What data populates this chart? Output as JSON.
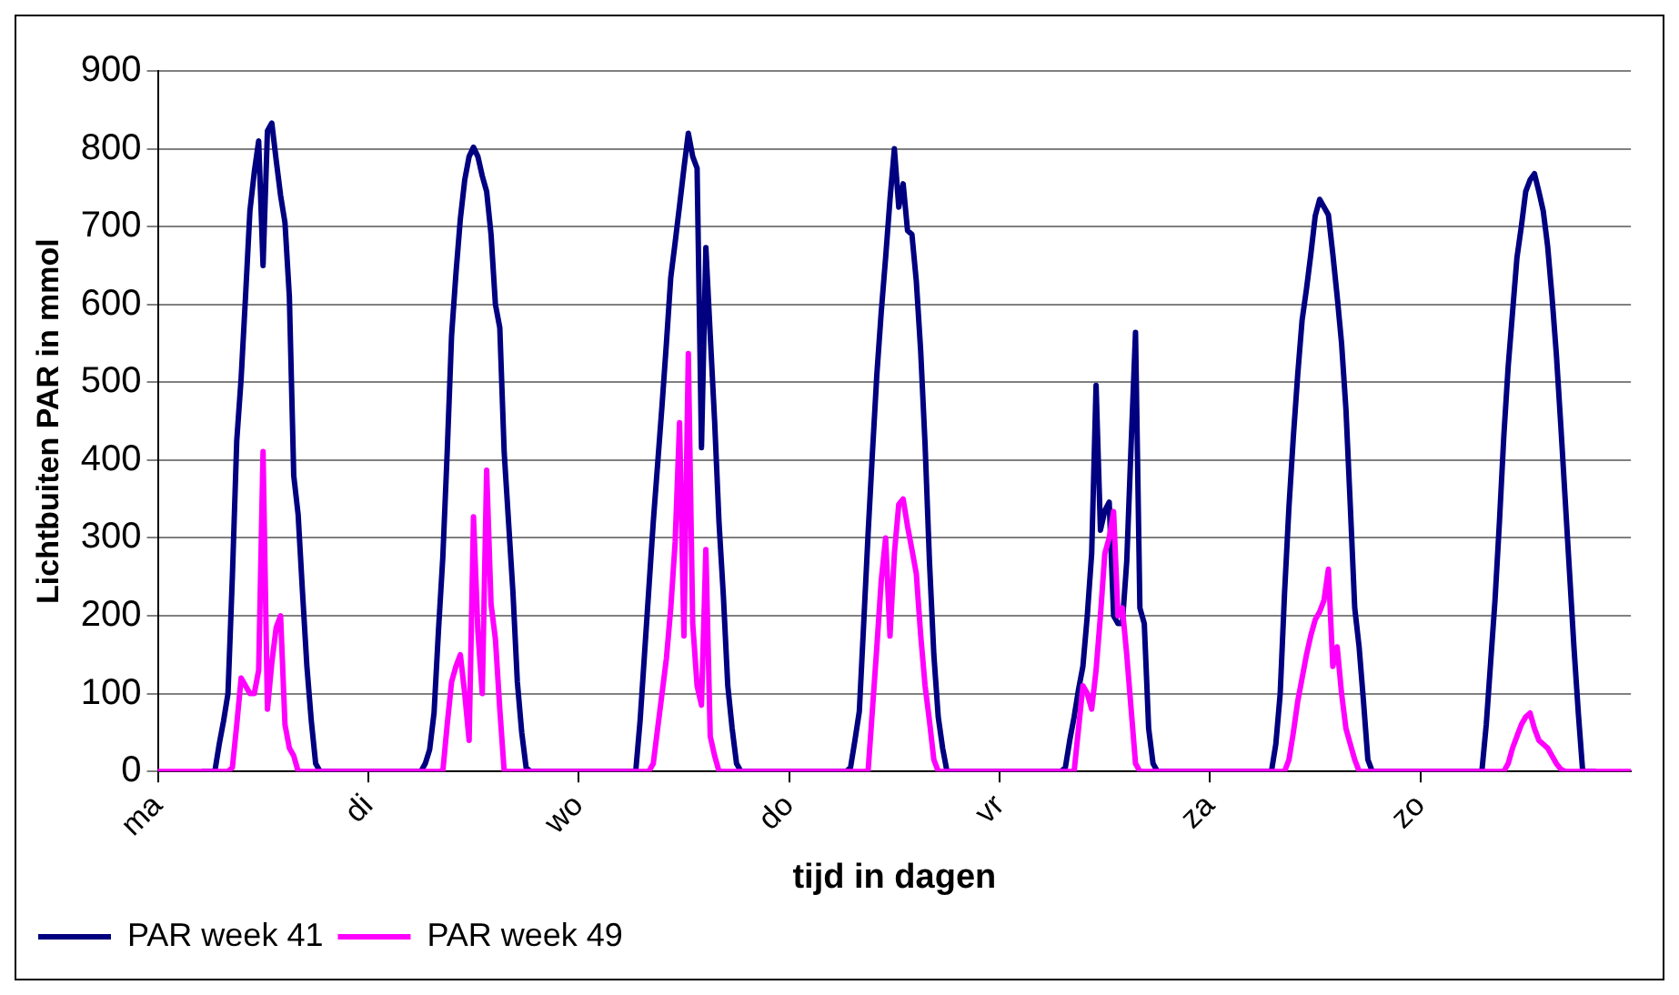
{
  "chart_data": {
    "type": "line",
    "xlabel": "tijd in dagen",
    "ylabel": "Lichtbuiten PAR in mmol",
    "categories": [
      "ma",
      null,
      null,
      null,
      null,
      null,
      null,
      null,
      null,
      null,
      null,
      null,
      null,
      null,
      null,
      null,
      null,
      null,
      null,
      null,
      null,
      null,
      null,
      null,
      null,
      null,
      null,
      null,
      null,
      null,
      null,
      null,
      null,
      null,
      null,
      null,
      null,
      null,
      null,
      null,
      null,
      null,
      null,
      null,
      null,
      null,
      null,
      null,
      "di",
      null,
      null,
      null,
      null,
      null,
      null,
      null,
      null,
      null,
      null,
      null,
      null,
      null,
      null,
      null,
      null,
      null,
      null,
      null,
      null,
      null,
      null,
      null,
      null,
      null,
      null,
      null,
      null,
      null,
      null,
      null,
      null,
      null,
      null,
      null,
      null,
      null,
      null,
      null,
      null,
      null,
      null,
      null,
      null,
      null,
      null,
      null,
      "wo",
      null,
      null,
      null,
      null,
      null,
      null,
      null,
      null,
      null,
      null,
      null,
      null,
      null,
      null,
      null,
      null,
      null,
      null,
      null,
      null,
      null,
      null,
      null,
      null,
      null,
      null,
      null,
      null,
      null,
      null,
      null,
      null,
      null,
      null,
      null,
      null,
      null,
      null,
      null,
      null,
      null,
      null,
      null,
      null,
      null,
      null,
      null,
      "do",
      null,
      null,
      null,
      null,
      null,
      null,
      null,
      null,
      null,
      null,
      null,
      null,
      null,
      null,
      null,
      null,
      null,
      null,
      null,
      null,
      null,
      null,
      null,
      null,
      null,
      null,
      null,
      null,
      null,
      null,
      null,
      null,
      null,
      null,
      null,
      null,
      null,
      null,
      null,
      null,
      null,
      null,
      null,
      null,
      null,
      null,
      null,
      "vr",
      null,
      null,
      null,
      null,
      null,
      null,
      null,
      null,
      null,
      null,
      null,
      null,
      null,
      null,
      null,
      null,
      null,
      null,
      null,
      null,
      null,
      null,
      null,
      null,
      null,
      null,
      null,
      null,
      null,
      null,
      null,
      null,
      null,
      null,
      null,
      null,
      null,
      null,
      null,
      null,
      null,
      null,
      null,
      null,
      null,
      null,
      null,
      "za",
      null,
      null,
      null,
      null,
      null,
      null,
      null,
      null,
      null,
      null,
      null,
      null,
      null,
      null,
      null,
      null,
      null,
      null,
      null,
      null,
      null,
      null,
      null,
      null,
      null,
      null,
      null,
      null,
      null,
      null,
      null,
      null,
      null,
      null,
      null,
      null,
      null,
      null,
      null,
      null,
      null,
      null,
      null,
      null,
      null,
      null,
      null,
      "zo",
      null,
      null,
      null,
      null,
      null,
      null,
      null,
      null,
      null,
      null,
      null,
      null,
      null,
      null,
      null,
      null,
      null,
      null,
      null,
      null,
      null,
      null,
      null,
      null,
      null,
      null,
      null,
      null,
      null,
      null,
      null,
      null,
      null,
      null,
      null,
      null,
      null,
      null,
      null,
      null,
      null,
      null,
      null,
      null,
      null,
      null,
      null,
      null
    ],
    "ylim": [
      0,
      900
    ],
    "yticks": [
      0,
      100,
      200,
      300,
      400,
      500,
      600,
      700,
      800,
      900
    ],
    "grid": "y",
    "legend": "bottom left",
    "series": [
      {
        "name": "PAR week 41",
        "color": "#000080",
        "values": [
          null,
          null,
          null,
          null,
          null,
          null,
          null,
          null,
          null,
          null,
          0,
          0,
          0,
          0,
          35,
          65,
          100,
          250,
          425,
          505,
          610,
          720,
          770,
          810,
          650,
          823,
          833,
          785,
          740,
          705,
          610,
          380,
          330,
          230,
          135,
          65,
          10,
          0,
          0,
          0,
          0,
          0,
          0,
          0,
          0,
          0,
          0,
          0,
          0,
          0,
          0,
          0,
          0,
          0,
          0,
          0,
          0,
          0,
          0,
          0,
          0,
          10,
          28,
          75,
          180,
          275,
          410,
          560,
          640,
          710,
          760,
          790,
          802,
          790,
          765,
          745,
          690,
          600,
          570,
          410,
          320,
          230,
          115,
          50,
          5,
          0,
          0,
          0,
          0,
          0,
          0,
          0,
          0,
          0,
          0,
          0,
          0,
          0,
          0,
          0,
          0,
          0,
          0,
          0,
          0,
          0,
          0,
          0,
          0,
          0,
          65,
          150,
          235,
          320,
          395,
          470,
          550,
          635,
          680,
          727,
          775,
          820,
          790,
          775,
          416,
          673,
          560,
          450,
          320,
          225,
          110,
          55,
          10,
          0,
          0,
          0,
          0,
          0,
          0,
          0,
          0,
          0,
          0,
          0,
          0,
          0,
          0,
          0,
          0,
          0,
          0,
          0,
          0,
          0,
          0,
          0,
          0,
          0,
          5,
          40,
          77,
          190,
          305,
          410,
          510,
          590,
          660,
          735,
          800,
          725,
          755,
          695,
          690,
          630,
          540,
          420,
          270,
          150,
          70,
          30,
          0,
          0,
          0,
          0,
          0,
          0,
          0,
          0,
          0,
          0,
          0,
          0,
          0,
          0,
          0,
          0,
          0,
          0,
          0,
          0,
          0,
          0,
          0,
          0,
          0,
          0,
          0,
          5,
          40,
          70,
          105,
          135,
          200,
          280,
          496,
          310,
          335,
          346,
          200,
          190,
          190,
          270,
          420,
          564,
          210,
          190,
          55,
          10,
          0,
          0,
          0,
          0,
          0,
          0,
          0,
          0,
          0,
          0,
          0,
          0,
          0,
          0,
          0,
          0,
          0,
          0,
          0,
          0,
          0,
          0,
          0,
          0,
          0,
          0,
          0,
          35,
          100,
          230,
          340,
          430,
          510,
          580,
          620,
          665,
          714,
          735,
          725,
          715,
          665,
          610,
          550,
          465,
          340,
          210,
          160,
          90,
          15,
          0,
          0,
          0,
          0,
          0,
          0,
          0,
          0,
          0,
          0,
          0,
          0,
          0,
          0,
          0,
          0,
          0,
          0,
          0,
          0,
          0,
          0,
          0,
          0,
          0,
          0,
          60,
          140,
          220,
          320,
          430,
          520,
          590,
          660,
          700,
          745,
          760,
          768,
          745,
          720,
          675,
          610,
          535,
          445,
          350,
          255,
          160,
          75,
          0,
          0,
          0,
          0,
          null,
          null,
          null,
          null,
          null,
          null,
          null,
          null
        ]
      },
      {
        "name": "PAR week 49",
        "color": "#ff00ff",
        "values": [
          0,
          0,
          0,
          0,
          0,
          0,
          0,
          0,
          0,
          0,
          0,
          0,
          0,
          0,
          0,
          0,
          0,
          5,
          60,
          120,
          110,
          100,
          100,
          130,
          411,
          80,
          140,
          185,
          200,
          60,
          30,
          20,
          0,
          0,
          0,
          0,
          0,
          0,
          0,
          0,
          0,
          0,
          0,
          0,
          0,
          0,
          0,
          0,
          0,
          0,
          0,
          0,
          0,
          0,
          0,
          0,
          0,
          0,
          0,
          0,
          0,
          0,
          0,
          0,
          0,
          0,
          60,
          115,
          135,
          150,
          100,
          40,
          327,
          180,
          100,
          387,
          215,
          170,
          80,
          0,
          0,
          0,
          0,
          0,
          0,
          0,
          0,
          0,
          0,
          0,
          0,
          0,
          0,
          0,
          0,
          0,
          0,
          0,
          0,
          0,
          0,
          0,
          0,
          0,
          0,
          0,
          0,
          0,
          0,
          0,
          0,
          0,
          0,
          10,
          55,
          100,
          145,
          210,
          295,
          448,
          174,
          537,
          190,
          110,
          85,
          285,
          45,
          20,
          0,
          0,
          0,
          0,
          0,
          0,
          0,
          0,
          0,
          0,
          0,
          0,
          0,
          0,
          0,
          0,
          0,
          0,
          0,
          0,
          0,
          0,
          0,
          0,
          0,
          0,
          0,
          0,
          0,
          0,
          0,
          0,
          0,
          0,
          0,
          80,
          160,
          245,
          300,
          174,
          280,
          343,
          350,
          315,
          285,
          254,
          175,
          110,
          65,
          15,
          0,
          0,
          0,
          0,
          0,
          0,
          0,
          0,
          0,
          0,
          0,
          0,
          0,
          0,
          0,
          0,
          0,
          0,
          0,
          0,
          0,
          0,
          0,
          0,
          0,
          0,
          0,
          0,
          0,
          0,
          0,
          0,
          55,
          110,
          100,
          80,
          130,
          200,
          280,
          300,
          334,
          200,
          210,
          150,
          80,
          10,
          0,
          0,
          0,
          0,
          0,
          0,
          0,
          0,
          0,
          0,
          0,
          0,
          0,
          0,
          0,
          0,
          0,
          0,
          0,
          0,
          0,
          0,
          0,
          0,
          0,
          0,
          0,
          0,
          0,
          0,
          0,
          0,
          0,
          0,
          15,
          50,
          90,
          120,
          150,
          175,
          195,
          205,
          220,
          260,
          135,
          160,
          100,
          55,
          35,
          15,
          0,
          0,
          0,
          0,
          0,
          0,
          0,
          0,
          0,
          0,
          0,
          0,
          0,
          0,
          0,
          0,
          0,
          0,
          0,
          0,
          0,
          0,
          0,
          0,
          0,
          0,
          0,
          0,
          0,
          0,
          0,
          0,
          0,
          0,
          10,
          30,
          45,
          60,
          70,
          75,
          55,
          40,
          35,
          30,
          20,
          10,
          3,
          0,
          0,
          0,
          0,
          0,
          0,
          0,
          0,
          0,
          0,
          0,
          0,
          0,
          0,
          0,
          0
        ]
      }
    ]
  }
}
